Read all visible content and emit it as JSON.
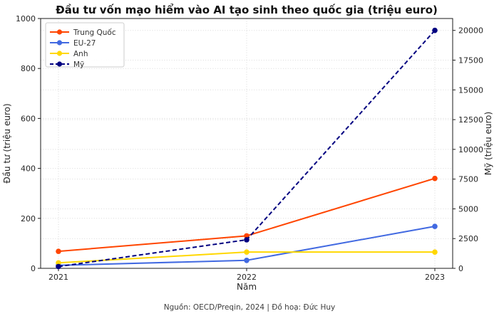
{
  "title": "Đầu tư vốn mạo hiểm vào AI tạo sinh theo quốc gia (triệu euro)",
  "footer": "Nguồn: OECD/Preqin, 2024 | Đồ hoạ: Đức Huy",
  "chart_data": {
    "type": "line",
    "title": "Đầu tư vốn mạo hiểm vào AI tạo sinh theo quốc gia (triệu euro)",
    "xlabel": "Năm",
    "ylabel_left": "Đầu tư (triệu euro)",
    "ylabel_right": "Mỹ (triệu euro)",
    "x": [
      "2021",
      "2022",
      "2023"
    ],
    "left_axis": {
      "range": [
        0,
        1000
      ],
      "ticks": [
        0,
        200,
        400,
        600,
        800,
        1000
      ]
    },
    "right_axis": {
      "range": [
        0,
        21000
      ],
      "ticks": [
        0,
        2500,
        5000,
        7500,
        10000,
        12500,
        15000,
        17500,
        20000
      ]
    },
    "grid": "dotted",
    "legend_position": "upper-left",
    "series": [
      {
        "name": "Trung Quốc",
        "axis": "left",
        "style": "solid",
        "color": "#FF4500",
        "values": [
          68,
          130,
          360
        ]
      },
      {
        "name": "EU-27",
        "axis": "left",
        "style": "solid",
        "color": "#4169E1",
        "values": [
          12,
          32,
          168
        ]
      },
      {
        "name": "Anh",
        "axis": "left",
        "style": "solid",
        "color": "#FFD700",
        "values": [
          22,
          65,
          65
        ]
      },
      {
        "name": "Mỹ",
        "axis": "right",
        "style": "dashed",
        "color": "#000080",
        "values": [
          150,
          2400,
          20000
        ]
      }
    ],
    "colors": {
      "grid": "#d9d9d9",
      "spine": "#1a1a1a",
      "tick_label": "#262626",
      "legend_border": "#cccccc"
    }
  }
}
